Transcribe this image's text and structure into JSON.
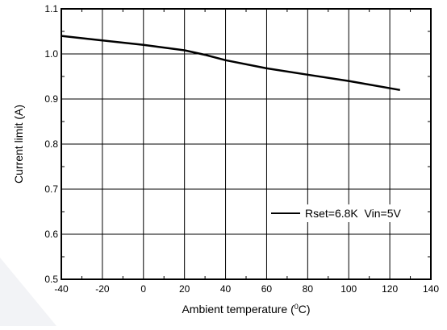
{
  "chart_data": {
    "type": "line",
    "xlabel": "Ambient temperature (°C)",
    "xlabel_main": "Ambient temperature (",
    "xlabel_sup": "0",
    "xlabel_end": "C)",
    "ylabel": "Current limit (A)",
    "xlim": [
      -40,
      140
    ],
    "ylim": [
      0.5,
      1.1
    ],
    "xticks": [
      -40,
      -20,
      0,
      20,
      40,
      60,
      80,
      100,
      120,
      140
    ],
    "yticks": [
      0.5,
      0.6,
      0.7,
      0.8,
      0.9,
      1.0,
      1.1
    ],
    "xtick_labels": [
      "-40",
      "-20",
      "0",
      "20",
      "40",
      "60",
      "80",
      "100",
      "120",
      "140"
    ],
    "ytick_labels": [
      "0.5",
      "0.6",
      "0.7",
      "0.8",
      "0.9",
      "1.0",
      "1.1"
    ],
    "grid": true,
    "legend_position": "bottom-right",
    "series": [
      {
        "name": "Rset=6.8K  Vin=5V",
        "color": "#000000",
        "x": [
          -40,
          -20,
          0,
          20,
          30,
          40,
          60,
          80,
          100,
          125
        ],
        "y": [
          1.04,
          1.03,
          1.02,
          1.008,
          0.998,
          0.986,
          0.968,
          0.954,
          0.94,
          0.92
        ]
      }
    ]
  }
}
